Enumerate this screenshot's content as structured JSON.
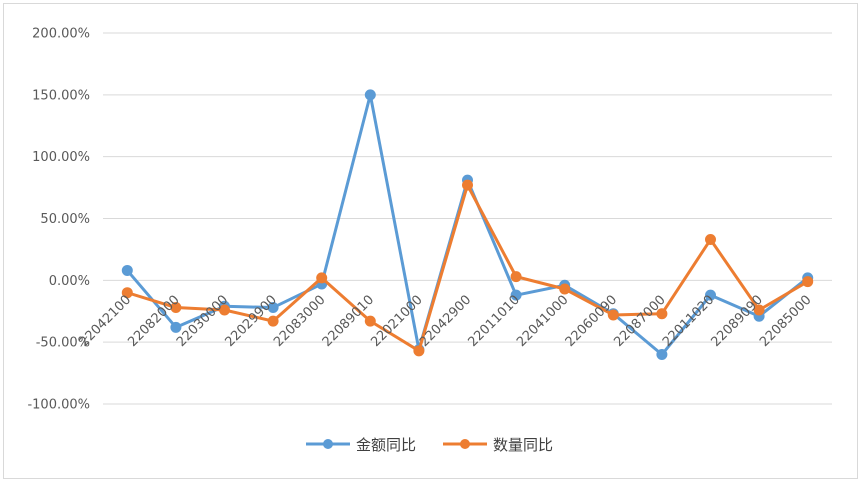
{
  "chart_data": {
    "type": "line",
    "categories": [
      "22042100",
      "22082000",
      "22030000",
      "22029900",
      "22083000",
      "22089010",
      "22021000",
      "22042900",
      "22011010",
      "22041000",
      "22060090",
      "22087000",
      "22011020",
      "22089090",
      "22085000"
    ],
    "series": [
      {
        "name": "金额同比",
        "color": "#5b9bd5",
        "values": [
          0.08,
          -0.38,
          -0.21,
          -0.22,
          -0.03,
          1.5,
          -0.56,
          0.81,
          -0.12,
          -0.04,
          -0.27,
          -0.6,
          -0.12,
          -0.29,
          0.02
        ]
      },
      {
        "name": "数量同比",
        "color": "#ed7d31",
        "values": [
          -0.1,
          -0.22,
          -0.24,
          -0.33,
          0.02,
          -0.33,
          -0.57,
          0.77,
          0.03,
          -0.07,
          -0.28,
          -0.27,
          0.33,
          -0.24,
          -0.01
        ]
      }
    ],
    "y_ticks": [
      "200.00%",
      "150.00%",
      "100.00%",
      "50.00%",
      "0.00%",
      "-50.00%",
      "-100.00%"
    ],
    "ylim": [
      -1.0,
      2.0
    ],
    "grid": true,
    "legend_position": "bottom"
  }
}
